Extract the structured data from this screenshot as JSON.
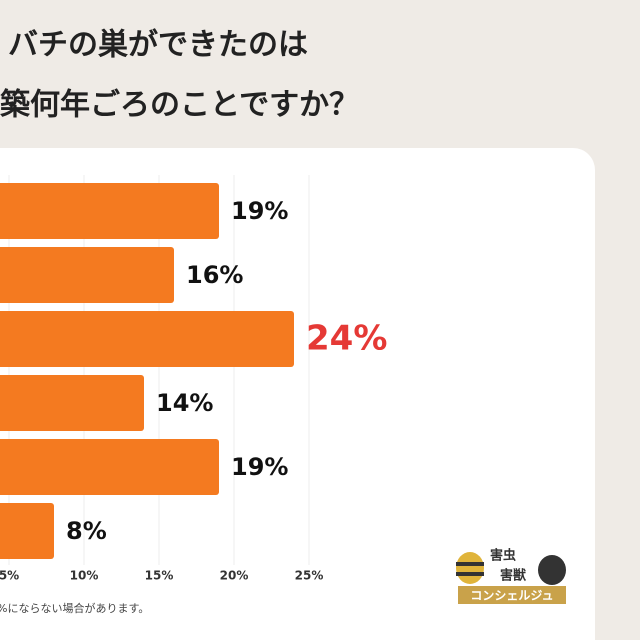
{
  "chart_data": {
    "type": "barh",
    "title_lines": [
      "バチの巣ができたのは",
      "築何年ごろのことですか？"
    ],
    "values": [
      19,
      16,
      24,
      14,
      19,
      8
    ],
    "value_labels": [
      "19%",
      "16%",
      "24%",
      "14%",
      "19%",
      "8%"
    ],
    "label_colors": [
      "#111111",
      "#111111",
      "#e53935",
      "#111111",
      "#111111",
      "#111111"
    ],
    "color": "#f47a20",
    "xlim": [
      0,
      25
    ],
    "xticks": [
      {
        "value": 5,
        "label": "5%"
      },
      {
        "value": 10,
        "label": "10%"
      },
      {
        "value": 15,
        "label": "15%"
      },
      {
        "value": 20,
        "label": "20%"
      },
      {
        "value": 25,
        "label": "25%"
      }
    ],
    "grid": true,
    "footnote": "%にならない場合があります。",
    "logo": {
      "line1": "害虫",
      "line2": "害獣",
      "line3": "コンシェルジュ"
    }
  }
}
